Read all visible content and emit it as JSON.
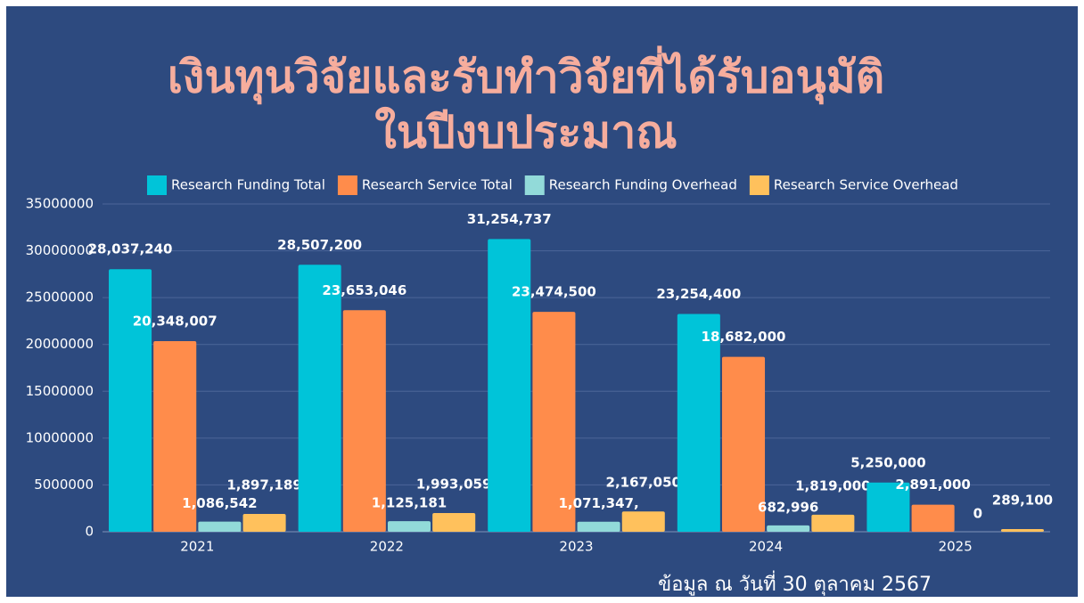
{
  "chart_data": {
    "type": "bar",
    "title": [
      "เงินทุนวิจัยและรับทำวิจัยที่ได้รับอนุมัติ",
      "ในปีงบประมาณ"
    ],
    "categories": [
      "2021",
      "2022",
      "2023",
      "2024",
      "2025"
    ],
    "series": [
      {
        "name": "Research Funding Total",
        "color": "#00c4d9",
        "values": [
          28037240,
          28507200,
          31254737,
          23254400,
          5250000
        ],
        "value_labels": [
          "28,037,240",
          "28,507,200",
          "31,254,737",
          "23,254,400",
          "5,250,000"
        ]
      },
      {
        "name": "Research Service Total",
        "color": "#ff8c4b",
        "values": [
          20348007,
          23653046,
          23474500,
          18682000,
          2891000
        ],
        "value_labels": [
          "20,348,007",
          "23,653,046",
          "23,474,500",
          "18,682,000",
          "2,891,000"
        ]
      },
      {
        "name": "Research Funding Overhead",
        "color": "#92dad9",
        "values": [
          1086542,
          1125181,
          1071347,
          682996,
          0
        ],
        "value_labels": [
          "1,086,542",
          "1,125,181",
          "1,071,347,",
          "682,996",
          "0"
        ]
      },
      {
        "name": "Research Service Overhead",
        "color": "#ffc15c",
        "values": [
          1897189,
          1993059,
          2167050,
          1819000,
          289100
        ],
        "value_labels": [
          "1,897,189",
          "1,993,059",
          "2,167,050",
          "1,819,000",
          "289,100"
        ]
      }
    ],
    "ylim": [
      0,
      35000000
    ],
    "yticks": [
      0,
      5000000,
      10000000,
      15000000,
      20000000,
      25000000,
      30000000,
      35000000
    ],
    "grid": true,
    "legend": "top",
    "footnote": "ข้อมูล ณ วันที่ 30 ตุลาคม 2567"
  }
}
